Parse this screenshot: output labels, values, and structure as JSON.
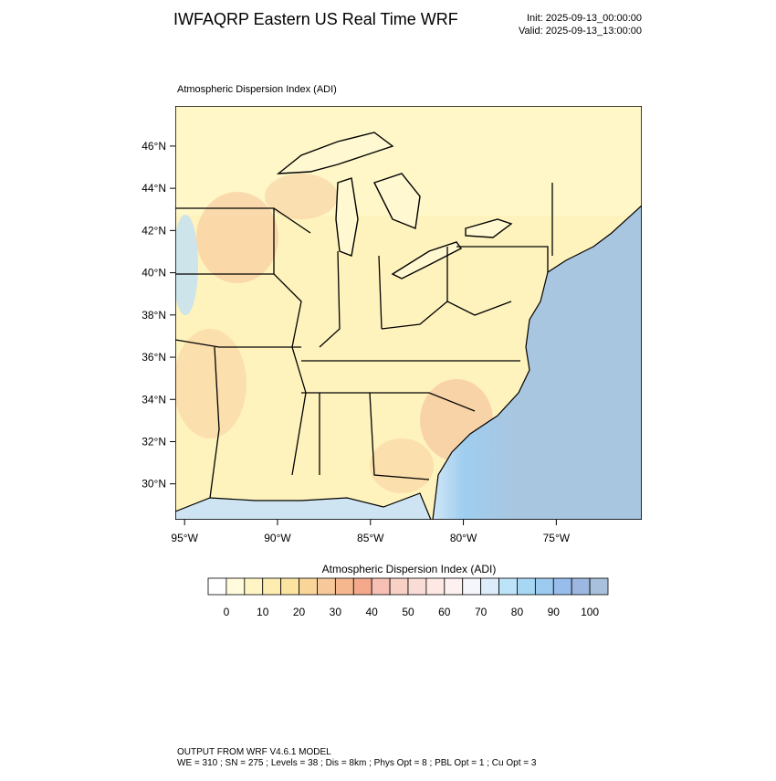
{
  "header": {
    "title": "IWFAQRP Eastern US Real Time WRF",
    "init": "Init: 2025-09-13_00:00:00",
    "valid": "Valid: 2025-09-13_13:00:00"
  },
  "map": {
    "label": "Atmospheric Dispersion Index   (ADI)",
    "lonlim": [
      -95.5,
      -70.4
    ],
    "latlim": [
      28.3,
      47.9
    ],
    "lat_ticks": [
      {
        "value": 46,
        "label": "46°N"
      },
      {
        "value": 44,
        "label": "44°N"
      },
      {
        "value": 42,
        "label": "42°N"
      },
      {
        "value": 40,
        "label": "40°N"
      },
      {
        "value": 38,
        "label": "38°N"
      },
      {
        "value": 36,
        "label": "36°N"
      },
      {
        "value": 34,
        "label": "34°N"
      },
      {
        "value": 32,
        "label": "32°N"
      },
      {
        "value": 30,
        "label": "30°N"
      }
    ],
    "lon_ticks": [
      {
        "value": -95,
        "label": "95°W"
      },
      {
        "value": -90,
        "label": "90°W"
      },
      {
        "value": -85,
        "label": "85°W"
      },
      {
        "value": -80,
        "label": "80°W"
      },
      {
        "value": -75,
        "label": "75°W"
      }
    ]
  },
  "colorbar": {
    "title": "Atmospheric Dispersion Index  (ADI)",
    "colors": [
      "#ffffff",
      "#fffbdc",
      "#fff5c4",
      "#fdedb0",
      "#fbe3a0",
      "#f9d59a",
      "#f7c89a",
      "#f5b78e",
      "#f4a98c",
      "#f6c0b4",
      "#f8d0c6",
      "#fadcd6",
      "#fde8e4",
      "#fdf0f0",
      "#f4f6fc",
      "#dcecfa",
      "#bde3f8",
      "#a6d8f4",
      "#9ccaf0",
      "#98bceb",
      "#9db8e0",
      "#a8c0dc"
    ],
    "ticks": [
      0,
      10,
      20,
      30,
      40,
      50,
      60,
      70,
      80,
      90,
      100
    ]
  },
  "footer": {
    "line1": "OUTPUT FROM WRF V4.6.1 MODEL",
    "line2": "WE = 310 ; SN = 275 ; Levels = 38 ; Dis = 8km ; Phys Opt = 8 ; PBL Opt = 1 ; Cu Opt = 3"
  }
}
